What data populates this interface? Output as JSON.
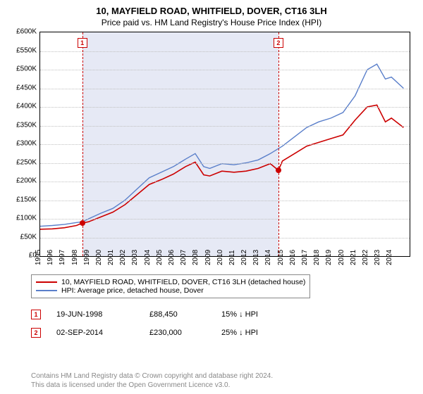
{
  "title_line1": "10, MAYFIELD ROAD, WHITFIELD, DOVER, CT16 3LH",
  "title_line2": "Price paid vs. HM Land Registry's House Price Index (HPI)",
  "chart": {
    "type": "line",
    "background_color": "#ffffff",
    "shade_color": "#e6e9f5",
    "grid_color": "#c0c0c0",
    "border_color": "#000000",
    "x_min": 1995,
    "x_max": 2025.5,
    "y_min": 0,
    "y_max": 600000,
    "y_ticks": [
      0,
      50000,
      100000,
      150000,
      200000,
      250000,
      300000,
      350000,
      400000,
      450000,
      500000,
      550000,
      600000
    ],
    "y_labels": [
      "£0",
      "£50K",
      "£100K",
      "£150K",
      "£200K",
      "£250K",
      "£300K",
      "£350K",
      "£400K",
      "£450K",
      "£500K",
      "£550K",
      "£600K"
    ],
    "x_ticks": [
      1995,
      1996,
      1997,
      1998,
      1999,
      2000,
      2001,
      2002,
      2003,
      2004,
      2005,
      2006,
      2007,
      2008,
      2009,
      2010,
      2011,
      2012,
      2013,
      2014,
      2015,
      2016,
      2017,
      2018,
      2019,
      2020,
      2021,
      2022,
      2023,
      2024
    ],
    "label_fontsize": 10,
    "shade_start_x": 1998.47,
    "shade_end_x": 2014.67,
    "series": [
      {
        "name": "HPI: Average price, detached house, Dover",
        "color": "#5a7fca",
        "line_width": 1.4,
        "data": [
          [
            1995,
            80000
          ],
          [
            1996,
            82000
          ],
          [
            1997,
            85000
          ],
          [
            1998,
            90000
          ],
          [
            1998.5,
            92000
          ],
          [
            1999,
            100000
          ],
          [
            2000,
            115000
          ],
          [
            2001,
            128000
          ],
          [
            2002,
            150000
          ],
          [
            2003,
            180000
          ],
          [
            2004,
            210000
          ],
          [
            2005,
            225000
          ],
          [
            2006,
            240000
          ],
          [
            2007,
            260000
          ],
          [
            2007.8,
            275000
          ],
          [
            2008.5,
            240000
          ],
          [
            2009,
            235000
          ],
          [
            2010,
            248000
          ],
          [
            2011,
            245000
          ],
          [
            2012,
            250000
          ],
          [
            2013,
            258000
          ],
          [
            2014,
            275000
          ],
          [
            2015,
            295000
          ],
          [
            2016,
            320000
          ],
          [
            2017,
            345000
          ],
          [
            2018,
            360000
          ],
          [
            2019,
            370000
          ],
          [
            2020,
            385000
          ],
          [
            2021,
            430000
          ],
          [
            2022,
            500000
          ],
          [
            2022.8,
            515000
          ],
          [
            2023.5,
            475000
          ],
          [
            2024,
            480000
          ],
          [
            2025,
            450000
          ]
        ]
      },
      {
        "name": "10, MAYFIELD ROAD, WHITFIELD, DOVER, CT16 3LH (detached house)",
        "color": "#cc0000",
        "line_width": 1.6,
        "data": [
          [
            1995,
            72000
          ],
          [
            1996,
            73000
          ],
          [
            1997,
            76000
          ],
          [
            1998,
            82000
          ],
          [
            1998.47,
            88450
          ],
          [
            1999,
            92000
          ],
          [
            2000,
            105000
          ],
          [
            2001,
            118000
          ],
          [
            2002,
            138000
          ],
          [
            2003,
            165000
          ],
          [
            2004,
            192000
          ],
          [
            2005,
            205000
          ],
          [
            2006,
            220000
          ],
          [
            2007,
            240000
          ],
          [
            2007.8,
            252000
          ],
          [
            2008.5,
            218000
          ],
          [
            2009,
            215000
          ],
          [
            2010,
            228000
          ],
          [
            2011,
            225000
          ],
          [
            2012,
            228000
          ],
          [
            2013,
            235000
          ],
          [
            2014,
            248000
          ],
          [
            2014.67,
            230000
          ],
          [
            2015,
            255000
          ],
          [
            2016,
            275000
          ],
          [
            2017,
            295000
          ],
          [
            2018,
            305000
          ],
          [
            2019,
            315000
          ],
          [
            2020,
            325000
          ],
          [
            2021,
            365000
          ],
          [
            2022,
            400000
          ],
          [
            2022.8,
            405000
          ],
          [
            2023.5,
            360000
          ],
          [
            2024,
            370000
          ],
          [
            2025,
            345000
          ]
        ]
      }
    ],
    "markers": [
      {
        "num": "1",
        "x": 1998.47,
        "y": 88450
      },
      {
        "num": "2",
        "x": 2014.67,
        "y": 230000
      }
    ],
    "marker_color": "#cc0000"
  },
  "legend": {
    "items": [
      {
        "color": "#cc0000",
        "label": "10, MAYFIELD ROAD, WHITFIELD, DOVER, CT16 3LH (detached house)"
      },
      {
        "color": "#5a7fca",
        "label": "HPI: Average price, detached house, Dover"
      }
    ]
  },
  "events": [
    {
      "num": "1",
      "date": "19-JUN-1998",
      "price": "£88,450",
      "note": "15% ↓ HPI"
    },
    {
      "num": "2",
      "date": "02-SEP-2014",
      "price": "£230,000",
      "note": "25% ↓ HPI"
    }
  ],
  "footer_line1": "Contains HM Land Registry data © Crown copyright and database right 2024.",
  "footer_line2": "This data is licensed under the Open Government Licence v3.0."
}
